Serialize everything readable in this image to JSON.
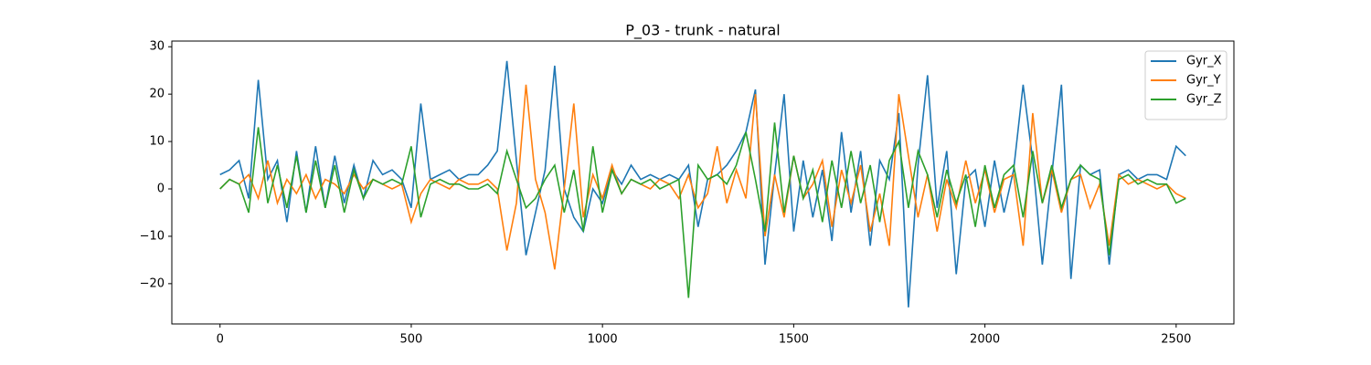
{
  "chart_data": {
    "type": "line",
    "title": "P_03 - trunk - natural",
    "x": [
      0,
      25,
      50,
      75,
      100,
      125,
      150,
      175,
      200,
      225,
      250,
      275,
      300,
      325,
      350,
      375,
      400,
      425,
      450,
      475,
      500,
      525,
      550,
      575,
      600,
      625,
      650,
      675,
      700,
      725,
      750,
      775,
      800,
      825,
      850,
      875,
      900,
      925,
      950,
      975,
      1000,
      1025,
      1050,
      1075,
      1100,
      1125,
      1150,
      1175,
      1200,
      1225,
      1250,
      1275,
      1300,
      1325,
      1350,
      1375,
      1400,
      1425,
      1450,
      1475,
      1500,
      1525,
      1550,
      1575,
      1600,
      1625,
      1650,
      1675,
      1700,
      1725,
      1750,
      1775,
      1800,
      1825,
      1850,
      1875,
      1900,
      1925,
      1950,
      1975,
      2000,
      2025,
      2050,
      2075,
      2100,
      2125,
      2150,
      2175,
      2200,
      2225,
      2250,
      2275,
      2300,
      2325,
      2350,
      2375,
      2400,
      2425,
      2450,
      2475,
      2500,
      2525
    ],
    "series": [
      {
        "name": "Gyr_X",
        "color": "#1f77b4",
        "values": [
          3,
          4,
          6,
          -2,
          23,
          2,
          6,
          -7,
          8,
          -5,
          9,
          -4,
          7,
          -3,
          5,
          -2,
          6,
          3,
          4,
          2,
          -4,
          18,
          2,
          3,
          4,
          2,
          3,
          3,
          5,
          8,
          27,
          6,
          -14,
          -5,
          4,
          26,
          0,
          -6,
          -9,
          0,
          -3,
          4,
          1,
          5,
          2,
          3,
          2,
          3,
          2,
          5,
          -8,
          2,
          3,
          5,
          8,
          12,
          21,
          -16,
          3,
          20,
          -9,
          6,
          -6,
          4,
          -11,
          12,
          -5,
          8,
          -12,
          6,
          2,
          16,
          -25,
          5,
          24,
          -4,
          8,
          -18,
          2,
          4,
          -8,
          6,
          -5,
          4,
          22,
          6,
          -16,
          3,
          22,
          -19,
          5,
          3,
          4,
          -16,
          3,
          4,
          2,
          3,
          3,
          2,
          9,
          7
        ]
      },
      {
        "name": "Gyr_Y",
        "color": "#ff7f0e",
        "values": [
          0,
          2,
          1,
          3,
          -2,
          6,
          -3,
          2,
          -1,
          3,
          -2,
          2,
          1,
          -1,
          3,
          0,
          2,
          1,
          0,
          1,
          -7,
          -1,
          2,
          1,
          0,
          2,
          1,
          1,
          2,
          0,
          -13,
          -3,
          22,
          2,
          -5,
          -17,
          0,
          18,
          -6,
          3,
          -2,
          5,
          -1,
          2,
          1,
          0,
          2,
          1,
          -2,
          3,
          -4,
          -1,
          9,
          -3,
          4,
          -2,
          20,
          -10,
          3,
          -6,
          7,
          -2,
          1,
          6,
          -8,
          4,
          -3,
          5,
          -9,
          -1,
          -12,
          20,
          7,
          -6,
          3,
          -9,
          2,
          -4,
          6,
          -3,
          4,
          -5,
          2,
          3,
          -12,
          16,
          -3,
          4,
          -5,
          2,
          3,
          -4,
          1,
          -12,
          3,
          1,
          2,
          1,
          0,
          1,
          -1,
          -2
        ]
      },
      {
        "name": "Gyr_Z",
        "color": "#2ca02c",
        "values": [
          0,
          2,
          1,
          -5,
          13,
          -3,
          5,
          -4,
          7,
          -5,
          6,
          -4,
          5,
          -5,
          4,
          -2,
          2,
          1,
          2,
          1,
          9,
          -6,
          1,
          2,
          1,
          1,
          0,
          0,
          1,
          -1,
          8,
          2,
          -4,
          -2,
          2,
          5,
          -5,
          4,
          -9,
          9,
          -5,
          4,
          -1,
          2,
          1,
          2,
          0,
          1,
          2,
          -23,
          5,
          2,
          3,
          1,
          5,
          12,
          2,
          -9,
          14,
          -5,
          7,
          -2,
          4,
          -7,
          6,
          -4,
          8,
          -3,
          5,
          -7,
          6,
          10,
          -4,
          8,
          3,
          -6,
          4,
          -3,
          3,
          -8,
          5,
          -4,
          3,
          5,
          -6,
          8,
          -3,
          5,
          -4,
          2,
          5,
          3,
          2,
          -14,
          2,
          3,
          1,
          2,
          1,
          1,
          -3,
          -2
        ]
      }
    ],
    "xlim": [
      -126,
      2651
    ],
    "ylim": [
      -28.5,
      31.2
    ],
    "xticks": [
      0,
      500,
      1000,
      1500,
      2000,
      2500
    ],
    "yticks": [
      {
        "value": -20,
        "label": "−20"
      },
      {
        "value": -10,
        "label": "−10"
      },
      0,
      10,
      20,
      30
    ],
    "legend": "upper right"
  }
}
